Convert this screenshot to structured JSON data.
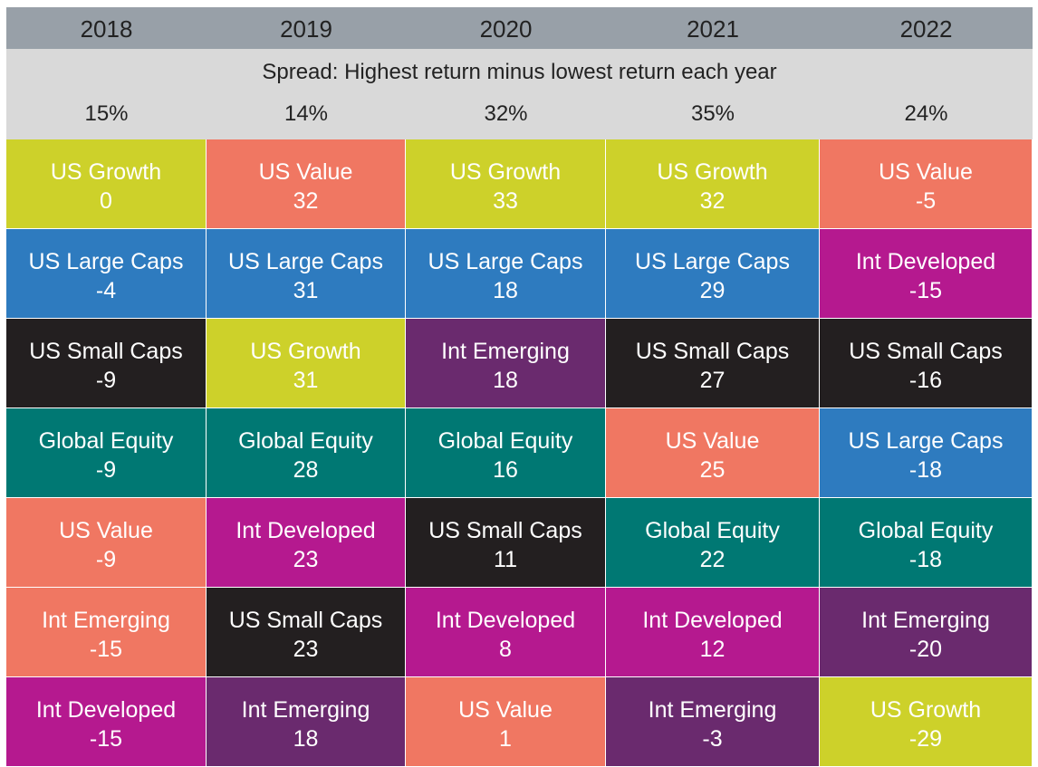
{
  "chart_data": {
    "type": "table",
    "years": [
      "2018",
      "2019",
      "2020",
      "2021",
      "2022"
    ],
    "spread_label": "Spread: Highest return minus lowest return each year",
    "spreads": [
      "15%",
      "14%",
      "32%",
      "35%",
      "24%"
    ],
    "colors": {
      "US Growth": "#cdd12a",
      "US Value": "#f07762",
      "US Large Caps": "#2e7bbf",
      "US Small Caps": "#231f20",
      "Global Equity": "#007873",
      "Int Developed": "#b5198f",
      "Int Emerging": "#6a2a6e"
    },
    "columns": [
      [
        {
          "name": "US Growth",
          "value": "0"
        },
        {
          "name": "US Large Caps",
          "value": "-4"
        },
        {
          "name": "US Small Caps",
          "value": "-9"
        },
        {
          "name": "Global Equity",
          "value": "-9"
        },
        {
          "name": "US Value",
          "value": "-9"
        },
        {
          "name": "Int Emerging",
          "value": "-15",
          "color_override": "#f07762"
        },
        {
          "name": "Int Developed",
          "value": "-15"
        }
      ],
      [
        {
          "name": "US Value",
          "value": "32"
        },
        {
          "name": "US Large Caps",
          "value": "31"
        },
        {
          "name": "US Growth",
          "value": "31"
        },
        {
          "name": "Global Equity",
          "value": "28"
        },
        {
          "name": "Int Developed",
          "value": "23"
        },
        {
          "name": "US Small Caps",
          "value": "23"
        },
        {
          "name": "Int Emerging",
          "value": "18"
        }
      ],
      [
        {
          "name": "US Growth",
          "value": "33"
        },
        {
          "name": "US Large Caps",
          "value": "18"
        },
        {
          "name": "Int Emerging",
          "value": "18"
        },
        {
          "name": "Global Equity",
          "value": "16"
        },
        {
          "name": "US Small Caps",
          "value": "11"
        },
        {
          "name": "Int Developed",
          "value": "8"
        },
        {
          "name": "US Value",
          "value": "1"
        }
      ],
      [
        {
          "name": "US Growth",
          "value": "32"
        },
        {
          "name": "US Large Caps",
          "value": "29"
        },
        {
          "name": "US Small Caps",
          "value": "27"
        },
        {
          "name": "US Value",
          "value": "25"
        },
        {
          "name": "Global Equity",
          "value": "22"
        },
        {
          "name": "Int Developed",
          "value": "12"
        },
        {
          "name": "Int Emerging",
          "value": "-3"
        }
      ],
      [
        {
          "name": "US Value",
          "value": "-5"
        },
        {
          "name": "Int Developed",
          "value": "-15"
        },
        {
          "name": "US Small Caps",
          "value": "-16"
        },
        {
          "name": "US Large Caps",
          "value": "-18"
        },
        {
          "name": "Global Equity",
          "value": "-18"
        },
        {
          "name": "Int Emerging",
          "value": "-20"
        },
        {
          "name": "US Growth",
          "value": "-29"
        }
      ]
    ]
  }
}
